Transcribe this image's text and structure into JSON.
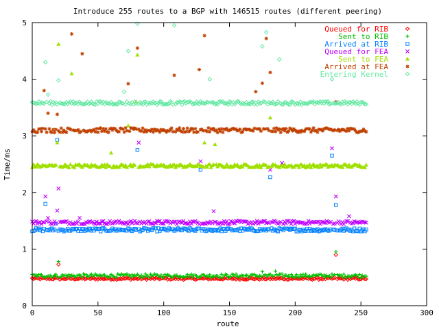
{
  "chart_data": {
    "type": "scatter",
    "title": "Introduce 255 routes to a BGP with 146515 routes (different peering)",
    "xlabel": "route",
    "ylabel": "Time/ms",
    "xlim": [
      0,
      300
    ],
    "ylim": [
      0,
      5
    ],
    "x_ticks": [
      0,
      50,
      100,
      150,
      200,
      250,
      300
    ],
    "y_ticks": [
      0,
      1,
      2,
      3,
      4,
      5
    ],
    "grid": false,
    "legend_position": "top-right",
    "n_points_per_series": 255,
    "series": [
      {
        "name": "Queued for RIB",
        "color": "#ff0000",
        "marker": "diamond",
        "baseline": 0.48,
        "jitter": 0.02,
        "outliers": [
          [
            20,
            0.73
          ],
          [
            231,
            0.9
          ]
        ]
      },
      {
        "name": "Sent to RIB",
        "color": "#00c000",
        "marker": "plus",
        "baseline": 0.53,
        "jitter": 0.03,
        "outliers": [
          [
            20,
            0.78
          ],
          [
            231,
            0.95
          ],
          [
            175,
            0.6
          ],
          [
            185,
            0.61
          ]
        ]
      },
      {
        "name": "Arrived at RIB",
        "color": "#0080ff",
        "marker": "square",
        "baseline": 1.34,
        "jitter": 0.03,
        "outliers": [
          [
            10,
            1.8
          ],
          [
            19,
            2.93
          ],
          [
            80,
            2.75
          ],
          [
            128,
            2.4
          ],
          [
            181,
            2.27
          ],
          [
            228,
            2.65
          ],
          [
            231,
            1.78
          ],
          [
            18,
            1.45
          ]
        ]
      },
      {
        "name": "Queued for FEA",
        "color": "#c000ff",
        "marker": "cross",
        "baseline": 1.47,
        "jitter": 0.03,
        "outliers": [
          [
            10,
            1.93
          ],
          [
            20,
            2.07
          ],
          [
            19,
            1.68
          ],
          [
            81,
            2.88
          ],
          [
            128,
            2.55
          ],
          [
            138,
            1.67
          ],
          [
            181,
            2.4
          ],
          [
            190,
            2.52
          ],
          [
            228,
            2.78
          ],
          [
            231,
            1.93
          ],
          [
            241,
            1.58
          ],
          [
            12,
            1.55
          ],
          [
            36,
            1.55
          ]
        ]
      },
      {
        "name": "Sent to FEA",
        "color": "#a0e000",
        "marker": "triangle",
        "baseline": 2.47,
        "jitter": 0.03,
        "outliers": [
          [
            20,
            4.62
          ],
          [
            30,
            4.1
          ],
          [
            19,
            2.88
          ],
          [
            60,
            2.7
          ],
          [
            80,
            4.43
          ],
          [
            79,
            3.6
          ],
          [
            139,
            2.85
          ],
          [
            181,
            3.32
          ],
          [
            73,
            3.18
          ],
          [
            131,
            2.88
          ]
        ]
      },
      {
        "name": "Arrived at FEA",
        "color": "#c04000",
        "marker": "star",
        "baseline": 3.1,
        "jitter": 0.04,
        "outliers": [
          [
            9,
            3.8
          ],
          [
            30,
            4.8
          ],
          [
            38,
            4.45
          ],
          [
            19,
            3.38
          ],
          [
            80,
            4.55
          ],
          [
            73,
            3.92
          ],
          [
            108,
            4.07
          ],
          [
            127,
            4.17
          ],
          [
            131,
            4.77
          ],
          [
            170,
            3.78
          ],
          [
            175,
            3.93
          ],
          [
            178,
            4.72
          ],
          [
            181,
            4.12
          ],
          [
            231,
            3.6
          ],
          [
            12,
            3.4
          ]
        ]
      },
      {
        "name": "Entering Kernel",
        "color": "#60e8a0",
        "marker": "diamond",
        "baseline": 3.58,
        "jitter": 0.03,
        "outliers": [
          [
            10,
            4.3
          ],
          [
            20,
            3.98
          ],
          [
            80,
            4.98
          ],
          [
            108,
            4.95
          ],
          [
            73,
            4.5
          ],
          [
            70,
            3.78
          ],
          [
            135,
            4.0
          ],
          [
            178,
            4.83
          ],
          [
            175,
            4.58
          ],
          [
            188,
            4.35
          ],
          [
            228,
            4.0
          ],
          [
            12,
            3.73
          ]
        ]
      }
    ]
  }
}
